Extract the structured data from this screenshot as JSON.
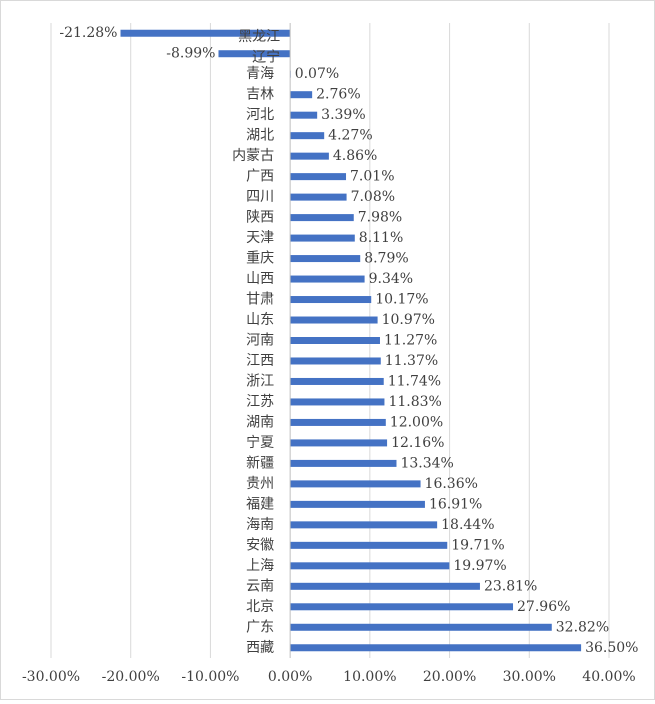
{
  "chart_data": {
    "type": "bar",
    "orientation": "horizontal",
    "title": "",
    "xlabel": "",
    "ylabel": "",
    "grid": true,
    "legend": "none",
    "bar_color": "#4472C4",
    "gridline_color": "#d9d9d9",
    "text_color": "#404040",
    "xlim": [
      -0.3,
      0.4
    ],
    "x_ticks": [
      -0.3,
      -0.2,
      -0.1,
      0.0,
      0.1,
      0.2,
      0.3,
      0.4
    ],
    "x_tick_labels": [
      "-30.00%",
      "-20.00%",
      "-10.00%",
      "0.00%",
      "10.00%",
      "20.00%",
      "30.00%",
      "40.00%"
    ],
    "categories": [
      "黑龙江",
      "辽宁",
      "青海",
      "吉林",
      "河北",
      "湖北",
      "内蒙古",
      "广西",
      "四川",
      "陕西",
      "天津",
      "重庆",
      "山西",
      "甘肃",
      "山东",
      "河南",
      "江西",
      "浙江",
      "江苏",
      "湖南",
      "宁夏",
      "新疆",
      "贵州",
      "福建",
      "海南",
      "安徽",
      "上海",
      "云南",
      "北京",
      "广东",
      "西藏"
    ],
    "values": [
      -0.2128,
      -0.0899,
      0.0007,
      0.0276,
      0.0339,
      0.0427,
      0.0486,
      0.0701,
      0.0708,
      0.0798,
      0.0811,
      0.0879,
      0.0934,
      0.1017,
      0.1097,
      0.1127,
      0.1137,
      0.1174,
      0.1183,
      0.12,
      0.1216,
      0.1334,
      0.1636,
      0.1691,
      0.1844,
      0.1971,
      0.1997,
      0.2381,
      0.2796,
      0.3282,
      0.365
    ],
    "value_labels": [
      "-21.28%",
      "-8.99%",
      "0.07%",
      "2.76%",
      "3.39%",
      "4.27%",
      "4.86%",
      "7.01%",
      "7.08%",
      "7.98%",
      "8.11%",
      "8.79%",
      "9.34%",
      "10.17%",
      "10.97%",
      "11.27%",
      "11.37%",
      "11.74%",
      "11.83%",
      "12.00%",
      "12.16%",
      "13.34%",
      "16.36%",
      "16.91%",
      "18.44%",
      "19.71%",
      "19.97%",
      "23.81%",
      "27.96%",
      "32.82%",
      "36.50%"
    ]
  }
}
